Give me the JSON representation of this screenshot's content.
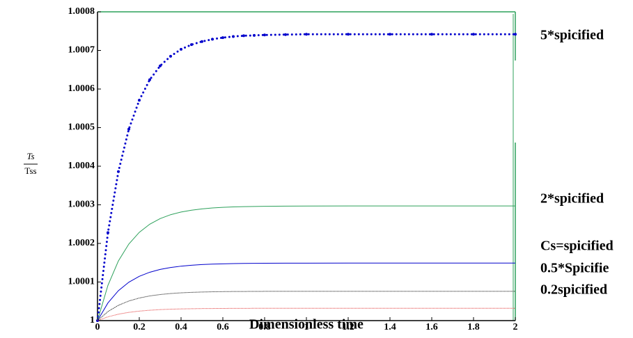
{
  "chart_data": {
    "type": "line",
    "x_label": "Dimensionless time",
    "y_label": {
      "numerator": "Ts",
      "denominator": "Tss"
    },
    "x": [
      0,
      0.05,
      0.1,
      0.15,
      0.2,
      0.25,
      0.3,
      0.35,
      0.4,
      0.45,
      0.5,
      0.55,
      0.6,
      0.65,
      0.7,
      0.75,
      0.8,
      0.9,
      1.0,
      1.2,
      1.4,
      1.6,
      1.8,
      2.0
    ],
    "series": [
      {
        "name": "5*spicified",
        "color": "#0000cc",
        "style": "dotted",
        "values": [
          1,
          1.000228,
          1.000386,
          1.000496,
          1.000571,
          1.000624,
          1.00066,
          1.000685,
          1.000703,
          1.000715,
          1.000723,
          1.000729,
          1.000733,
          1.000736,
          1.000738,
          1.000739,
          1.00074,
          1.000741,
          1.000742,
          1.000742,
          1.000742,
          1.000742,
          1.000742,
          1.000742
        ]
      },
      {
        "name": "2*spicified",
        "color": "#2ca05a",
        "style": "solid",
        "values": [
          1,
          1.0000914,
          1.0001546,
          1.0001984,
          1.0002287,
          1.0002497,
          1.0002643,
          1.0002744,
          1.0002813,
          1.0002861,
          1.0002895,
          1.0002918,
          1.0002934,
          1.0002945,
          1.0002953,
          1.0002958,
          1.0002962,
          1.0002966,
          1.0002968,
          1.000297,
          1.000297,
          1.000297,
          1.000297,
          1.000297
        ]
      },
      {
        "name": "Cs=spicified",
        "color": "#0000cc",
        "style": "solid",
        "values": [
          1,
          1.0000458,
          1.0000776,
          1.0000995,
          1.0001148,
          1.0001253,
          1.0001326,
          1.0001376,
          1.0001411,
          1.0001435,
          1.0001452,
          1.0001464,
          1.000147,
          1.0001477,
          1.0001481,
          1.0001484,
          1.0001486,
          1.0001488,
          1.0001489,
          1.000149,
          1.000149,
          1.000149,
          1.000149,
          1.000149
        ]
      },
      {
        "name": "0.5*Spicifie",
        "color": "#000000",
        "style": "dotted-fine",
        "values": [
          1,
          1.0000234,
          1.0000396,
          1.0000508,
          1.0000585,
          1.0000639,
          1.0000676,
          1.0000702,
          1.000072,
          1.0000732,
          1.0000741,
          1.0000747,
          1.0000751,
          1.0000754,
          1.0000755,
          1.0000757,
          1.0000758,
          1.0000759,
          1.000076,
          1.000076,
          1.000076,
          1.000076,
          1.000076,
          1.000076
        ]
      },
      {
        "name": "0.2spicified",
        "color": "#e03030",
        "style": "dotted-fine",
        "values": [
          1,
          1.0000098,
          1.0000167,
          1.0000214,
          1.0000246,
          1.0000269,
          1.0000285,
          1.0000296,
          1.0000303,
          1.0000308,
          1.0000312,
          1.0000314,
          1.0000316,
          1.0000317,
          1.0000318,
          1.0000319,
          1.0000319,
          1.000032,
          1.000032,
          1.000032,
          1.000032,
          1.000032,
          1.000032,
          1.000032
        ]
      }
    ],
    "xlim": [
      0,
      2
    ],
    "xticks": [
      0,
      0.2,
      0.4,
      0.6,
      0.8,
      1,
      1.2,
      1.4,
      1.6,
      1.8,
      2
    ],
    "ylim": [
      1,
      1.0008
    ],
    "yticks": [
      1,
      1.0001,
      1.0002,
      1.0003,
      1.0004,
      1.0005,
      1.0006,
      1.0007,
      1.0008
    ],
    "grid": false
  }
}
